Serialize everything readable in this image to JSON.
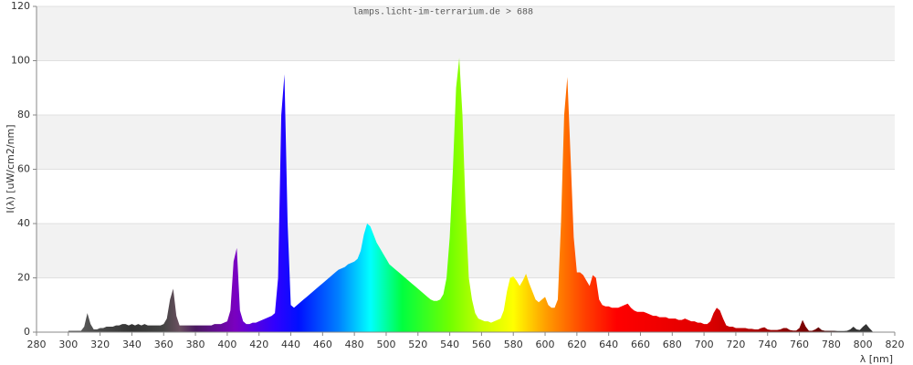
{
  "chart_data": {
    "type": "area",
    "title": "lamps.licht-im-terrarium.de > 688",
    "x_label": "λ [nm]",
    "y_label": "I(λ)  [uW/cm2/nm]",
    "x": [
      300,
      302,
      304,
      306,
      308,
      310,
      312,
      314,
      316,
      318,
      320,
      322,
      324,
      326,
      328,
      330,
      332,
      334,
      336,
      338,
      340,
      342,
      344,
      346,
      348,
      350,
      352,
      354,
      356,
      358,
      360,
      362,
      364,
      366,
      368,
      370,
      372,
      374,
      376,
      378,
      380,
      382,
      384,
      386,
      388,
      390,
      392,
      394,
      396,
      398,
      400,
      402,
      404,
      406,
      408,
      410,
      412,
      414,
      416,
      418,
      420,
      422,
      424,
      426,
      428,
      430,
      432,
      434,
      436,
      438,
      440,
      442,
      444,
      446,
      448,
      450,
      452,
      454,
      456,
      458,
      460,
      462,
      464,
      466,
      468,
      470,
      472,
      474,
      476,
      478,
      480,
      482,
      484,
      486,
      488,
      490,
      492,
      494,
      496,
      498,
      500,
      502,
      504,
      506,
      508,
      510,
      512,
      514,
      516,
      518,
      520,
      522,
      524,
      526,
      528,
      530,
      532,
      534,
      536,
      538,
      540,
      542,
      544,
      546,
      548,
      550,
      552,
      554,
      556,
      558,
      560,
      562,
      564,
      566,
      568,
      570,
      572,
      574,
      576,
      578,
      580,
      582,
      584,
      586,
      588,
      590,
      592,
      594,
      596,
      598,
      600,
      602,
      604,
      606,
      608,
      610,
      612,
      614,
      616,
      618,
      620,
      622,
      624,
      626,
      628,
      630,
      632,
      634,
      636,
      638,
      640,
      642,
      644,
      646,
      648,
      650,
      652,
      654,
      656,
      658,
      660,
      662,
      664,
      666,
      668,
      670,
      672,
      674,
      676,
      678,
      680,
      682,
      684,
      686,
      688,
      690,
      692,
      694,
      696,
      698,
      700,
      702,
      704,
      706,
      708,
      710,
      712,
      714,
      716,
      718,
      720,
      722,
      724,
      726,
      728,
      730,
      732,
      734,
      736,
      738,
      740,
      742,
      744,
      746,
      748,
      750,
      752,
      754,
      756,
      758,
      760,
      762,
      764,
      766,
      768,
      770,
      772,
      774,
      776,
      778,
      780,
      782,
      784,
      786,
      788,
      790,
      792,
      794,
      796,
      798,
      800,
      802,
      804,
      806
    ],
    "values": [
      0.5,
      0.5,
      0.5,
      0.5,
      0.5,
      2,
      7,
      3,
      1,
      1,
      1.5,
      1.5,
      2,
      2,
      2,
      2.5,
      2.5,
      3,
      3,
      2.5,
      3,
      2.5,
      3,
      2.5,
      3,
      2.5,
      2.5,
      2.5,
      2.5,
      2.5,
      3,
      5,
      12,
      16,
      6,
      2.5,
      2.5,
      2.5,
      2.5,
      2.5,
      2.5,
      2.5,
      2.5,
      2.5,
      2.5,
      2.5,
      3,
      3,
      3,
      3.5,
      4,
      8,
      26,
      31,
      8,
      4,
      3,
      3,
      3.5,
      3.5,
      4,
      4.5,
      5,
      5.5,
      6,
      7,
      20,
      80,
      95,
      40,
      10,
      9,
      10,
      11,
      12,
      13,
      14,
      15,
      16,
      17,
      18,
      19,
      20,
      21,
      22,
      23,
      23.5,
      24,
      25,
      25.5,
      26,
      27,
      30,
      36,
      40,
      39,
      36,
      33,
      31,
      29,
      27,
      25,
      24,
      23,
      22,
      21,
      20,
      19,
      18,
      17,
      16,
      15,
      14,
      13,
      12,
      11.5,
      11.5,
      12,
      14,
      20,
      35,
      60,
      90,
      101,
      80,
      45,
      20,
      12,
      7,
      5,
      4.5,
      4,
      4,
      3.5,
      4,
      4.5,
      5,
      8,
      15,
      20,
      20.5,
      19,
      17,
      19,
      21.5,
      18,
      15,
      12,
      11,
      12,
      13,
      10,
      9,
      9,
      12,
      40,
      80,
      94,
      65,
      35,
      22,
      22,
      21,
      19,
      17,
      21,
      20,
      12,
      10,
      9.5,
      9.5,
      9,
      9,
      9,
      9.5,
      10,
      10.5,
      9,
      8,
      7.5,
      7.5,
      7.5,
      7,
      6.5,
      6,
      6,
      5.5,
      5.5,
      5.5,
      5,
      5,
      5,
      4.5,
      4.5,
      5,
      4.5,
      4,
      4,
      3.5,
      3.5,
      3,
      3,
      4,
      7,
      9,
      8,
      5,
      2.5,
      2,
      2,
      1.5,
      1.5,
      1.5,
      1.5,
      1.2,
      1.2,
      1,
      1,
      1.5,
      1.8,
      1,
      0.8,
      0.8,
      0.8,
      1,
      1.5,
      1.5,
      0.8,
      0.6,
      0.6,
      1.5,
      4.5,
      2,
      0.5,
      0.5,
      1,
      1.8,
      0.8,
      0.5,
      0.5,
      0.5,
      0.5,
      0.4,
      0.4,
      0.4,
      0.5,
      1,
      2,
      1,
      0.8,
      2,
      3,
      1.5,
      0.3
    ],
    "xlim": [
      280,
      820
    ],
    "ylim": [
      0,
      120
    ],
    "xticks": [
      280,
      300,
      320,
      340,
      360,
      380,
      400,
      420,
      440,
      460,
      480,
      500,
      520,
      540,
      560,
      580,
      600,
      620,
      640,
      660,
      680,
      700,
      720,
      740,
      760,
      780,
      800,
      820
    ],
    "yticks": [
      0,
      20,
      40,
      60,
      80,
      100,
      120
    ],
    "grid": true
  }
}
